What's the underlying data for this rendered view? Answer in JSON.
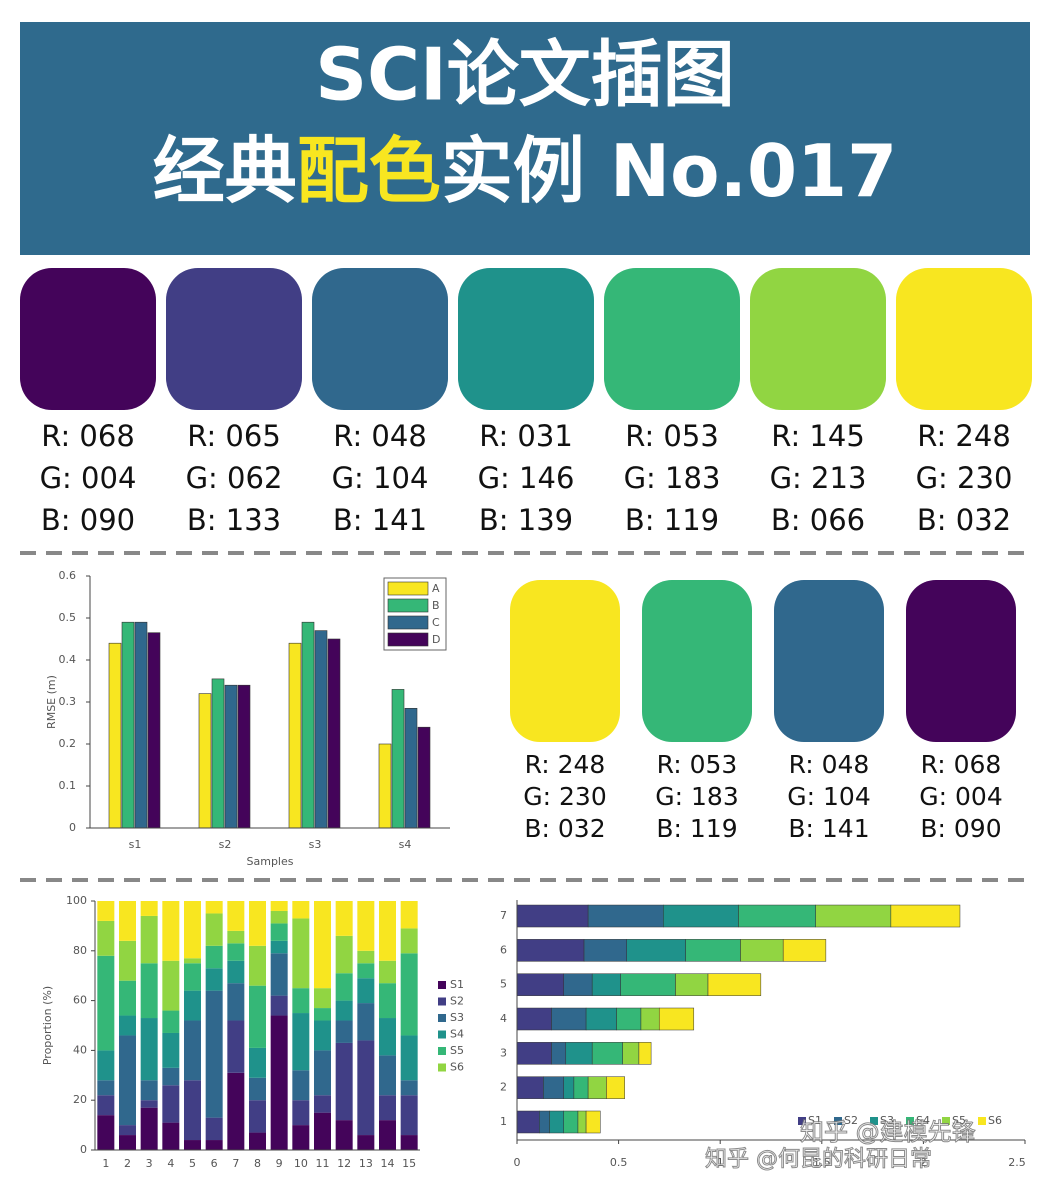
{
  "header": {
    "line1": "SCI论文插图",
    "line2": [
      "经典",
      "配色",
      "实例 No.017"
    ]
  },
  "palettes": [
    {
      "swatches": [
        {
          "color": "#44045a",
          "labels": [
            "R: 068",
            "G: 004",
            "B: 090"
          ]
        },
        {
          "color": "#413e85",
          "labels": [
            "R: 065",
            "G: 062",
            "B: 133"
          ]
        },
        {
          "color": "#30688d",
          "labels": [
            "R: 048",
            "G: 104",
            "B: 141"
          ]
        },
        {
          "color": "#1f928b",
          "labels": [
            "R: 031",
            "G: 146",
            "B: 139"
          ]
        },
        {
          "color": "#35b777",
          "labels": [
            "R: 053",
            "G: 183",
            "B: 119"
          ]
        },
        {
          "color": "#91d542",
          "labels": [
            "R: 145",
            "G: 213",
            "B: 066"
          ]
        },
        {
          "color": "#f8e620",
          "labels": [
            "R: 248",
            "G: 230",
            "B: 032"
          ]
        }
      ]
    },
    {
      "swatches": [
        {
          "color": "#f8e620",
          "labels": [
            "R: 248",
            "G: 230",
            "B: 032"
          ]
        },
        {
          "color": "#35b777",
          "labels": [
            "R: 053",
            "G: 183",
            "B: 119"
          ]
        },
        {
          "color": "#30688d",
          "labels": [
            "R: 048",
            "G: 104",
            "B: 141"
          ]
        },
        {
          "color": "#44045a",
          "labels": [
            "R: 068",
            "G: 004",
            "B: 090"
          ]
        }
      ]
    }
  ],
  "chart_data": [
    {
      "type": "bar",
      "x_label": "Samples",
      "y_label": "RMSE (m)",
      "categories": [
        "s1",
        "s2",
        "s3",
        "s4"
      ],
      "series": [
        {
          "name": "A",
          "color": "#f8e620",
          "values": [
            0.44,
            0.32,
            0.44,
            0.2
          ]
        },
        {
          "name": "B",
          "color": "#35b777",
          "values": [
            0.49,
            0.355,
            0.49,
            0.33
          ]
        },
        {
          "name": "C",
          "color": "#30688d",
          "values": [
            0.49,
            0.34,
            0.47,
            0.285
          ]
        },
        {
          "name": "D",
          "color": "#44045a",
          "values": [
            0.465,
            0.34,
            0.45,
            0.24
          ]
        }
      ],
      "ylim": [
        0,
        0.6
      ],
      "yticks": [
        0,
        0.1,
        0.2,
        0.3,
        0.4,
        0.5,
        0.6
      ],
      "legend": "upper right"
    },
    {
      "type": "stacked_bar",
      "y_label": "Proportion (%)",
      "categories": [
        "1",
        "2",
        "3",
        "4",
        "5",
        "6",
        "7",
        "8",
        "9",
        "10",
        "11",
        "12",
        "13",
        "14",
        "15"
      ],
      "series": [
        {
          "name": "S1",
          "color": "#44045a",
          "values": [
            14,
            6,
            17,
            11,
            4,
            4,
            31,
            7,
            54,
            10,
            15,
            12,
            6,
            12,
            6
          ]
        },
        {
          "name": "S2",
          "color": "#413e85",
          "values": [
            8,
            4,
            3,
            15,
            24,
            9,
            21,
            13,
            8,
            10,
            7,
            31,
            38,
            10,
            16
          ]
        },
        {
          "name": "S3",
          "color": "#30688d",
          "values": [
            6,
            36,
            8,
            7,
            24,
            51,
            15,
            9,
            17,
            12,
            18,
            9,
            15,
            16,
            6
          ]
        },
        {
          "name": "S4",
          "color": "#1f928b",
          "values": [
            12,
            8,
            25,
            14,
            12,
            9,
            9,
            12,
            5,
            23,
            12,
            8,
            10,
            15,
            18
          ]
        },
        {
          "name": "S5",
          "color": "#35b777",
          "values": [
            38,
            14,
            22,
            9,
            11,
            9,
            7,
            25,
            7,
            10,
            5,
            11,
            6,
            14,
            33
          ]
        },
        {
          "name": "S6",
          "color": "#91d542",
          "values": [
            14,
            16,
            19,
            20,
            2,
            13,
            5,
            16,
            5,
            28,
            8,
            15,
            5,
            9,
            10
          ]
        },
        {
          "color": "#f8e620",
          "values": [
            8,
            16,
            6,
            24,
            23,
            5,
            12,
            18,
            4,
            7,
            35,
            14,
            20,
            24,
            11
          ]
        }
      ],
      "ylim": [
        0,
        100
      ],
      "yticks": [
        0,
        20,
        40,
        60,
        80,
        100
      ],
      "legend": "right"
    },
    {
      "type": "stacked_barh",
      "categories": [
        "1",
        "2",
        "3",
        "4",
        "5",
        "6",
        "7"
      ],
      "series": [
        {
          "name": "S1",
          "color": "#413e85",
          "values": [
            0.11,
            0.13,
            0.17,
            0.17,
            0.23,
            0.33,
            0.35
          ]
        },
        {
          "name": "S2",
          "color": "#30688d",
          "values": [
            0.05,
            0.1,
            0.07,
            0.17,
            0.14,
            0.21,
            0.37
          ]
        },
        {
          "name": "S3",
          "color": "#1f928b",
          "values": [
            0.07,
            0.05,
            0.13,
            0.15,
            0.14,
            0.29,
            0.37
          ]
        },
        {
          "name": "S4",
          "color": "#35b777",
          "values": [
            0.07,
            0.07,
            0.15,
            0.12,
            0.27,
            0.27,
            0.38
          ]
        },
        {
          "name": "S5",
          "color": "#91d542",
          "values": [
            0.04,
            0.09,
            0.08,
            0.09,
            0.16,
            0.21,
            0.37
          ]
        },
        {
          "name": "S6",
          "color": "#f8e620",
          "values": [
            0.07,
            0.09,
            0.06,
            0.17,
            0.26,
            0.21,
            0.34
          ]
        }
      ],
      "xlim": [
        0,
        2.5
      ],
      "xticks": [
        0,
        0.5,
        1,
        1.5,
        2,
        2.5
      ],
      "legend": "lower right"
    }
  ],
  "watermarks": [
    "知乎 @建模先锋",
    "知乎 @何昆的科研日常"
  ]
}
